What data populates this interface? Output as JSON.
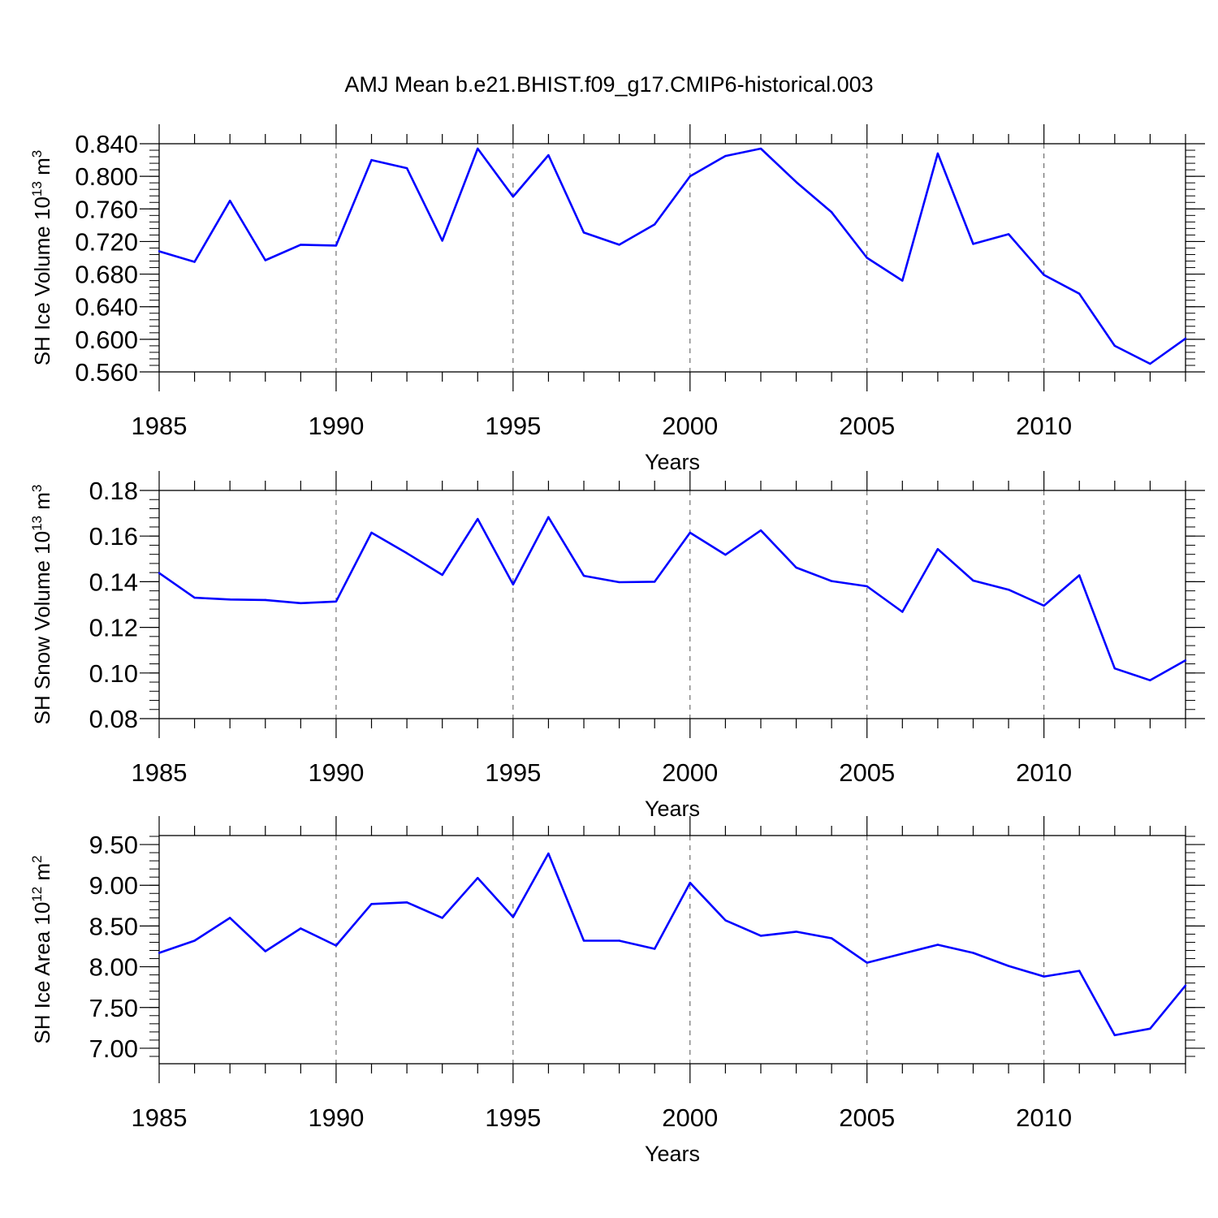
{
  "figure": {
    "title": "AMJ Mean b.e21.BHIST.f09_g17.CMIP6-historical.003"
  },
  "chart_data": [
    {
      "type": "line",
      "ylabel": "SH Ice Volume 10",
      "ylabel_exp": "13",
      "ylabel_unit": "m",
      "ylabel_unit_exp": "3",
      "xlabel": "Years",
      "xlim": [
        1985,
        2014
      ],
      "ylim": [
        0.56,
        0.84
      ],
      "x_ticks": [
        1985,
        1990,
        1995,
        2000,
        2005,
        2010
      ],
      "x_tick_labels": [
        "1985",
        "1990",
        "1995",
        "2000",
        "2005",
        "2010"
      ],
      "y_ticks": [
        0.56,
        0.6,
        0.64,
        0.68,
        0.72,
        0.76,
        0.8,
        0.84
      ],
      "y_tick_labels": [
        "0.560",
        "0.600",
        "0.640",
        "0.680",
        "0.720",
        "0.760",
        "0.800",
        "0.840"
      ],
      "y_minor_step": 0.008,
      "grid": "vertical dashed at major x ticks",
      "color": "#0000ff",
      "x": [
        1985,
        1986,
        1987,
        1988,
        1989,
        1990,
        1991,
        1992,
        1993,
        1994,
        1995,
        1996,
        1997,
        1998,
        1999,
        2000,
        2001,
        2002,
        2003,
        2004,
        2005,
        2006,
        2007,
        2008,
        2009,
        2010,
        2011,
        2012,
        2013,
        2014
      ],
      "values": [
        0.708,
        0.695,
        0.77,
        0.697,
        0.716,
        0.715,
        0.82,
        0.81,
        0.721,
        0.834,
        0.775,
        0.826,
        0.731,
        0.716,
        0.741,
        0.8,
        0.825,
        0.834,
        0.793,
        0.756,
        0.7,
        0.672,
        0.828,
        0.717,
        0.729,
        0.679,
        0.656,
        0.592,
        0.57,
        0.601
      ]
    },
    {
      "type": "line",
      "ylabel": "SH Snow Volume 10",
      "ylabel_exp": "13",
      "ylabel_unit": "m",
      "ylabel_unit_exp": "3",
      "xlabel": "Years",
      "xlim": [
        1985,
        2014
      ],
      "ylim": [
        0.08,
        0.18
      ],
      "x_ticks": [
        1985,
        1990,
        1995,
        2000,
        2005,
        2010
      ],
      "x_tick_labels": [
        "1985",
        "1990",
        "1995",
        "2000",
        "2005",
        "2010"
      ],
      "y_ticks": [
        0.08,
        0.1,
        0.12,
        0.14,
        0.16,
        0.18
      ],
      "y_tick_labels": [
        "0.08",
        "0.10",
        "0.12",
        "0.14",
        "0.16",
        "0.18"
      ],
      "y_minor_step": 0.004,
      "grid": "vertical dashed at major x ticks",
      "color": "#0000ff",
      "x": [
        1985,
        1986,
        1987,
        1988,
        1989,
        1990,
        1991,
        1992,
        1993,
        1994,
        1995,
        1996,
        1997,
        1998,
        1999,
        2000,
        2001,
        2002,
        2003,
        2004,
        2005,
        2006,
        2007,
        2008,
        2009,
        2010,
        2011,
        2012,
        2013,
        2014
      ],
      "values": [
        0.1438,
        0.133,
        0.1322,
        0.132,
        0.1306,
        0.1313,
        0.1615,
        0.1525,
        0.143,
        0.1675,
        0.1388,
        0.1683,
        0.1426,
        0.1398,
        0.14,
        0.1615,
        0.1518,
        0.1625,
        0.1462,
        0.1403,
        0.138,
        0.1268,
        0.1543,
        0.1405,
        0.1365,
        0.1295,
        0.1428,
        0.102,
        0.0968,
        0.1055
      ]
    },
    {
      "type": "line",
      "ylabel": "SH Ice Area 10",
      "ylabel_exp": "12",
      "ylabel_unit": "m",
      "ylabel_unit_exp": "2",
      "xlabel": "Years",
      "xlim": [
        1985,
        2014
      ],
      "ylim": [
        6.81,
        9.61
      ],
      "x_ticks": [
        1985,
        1990,
        1995,
        2000,
        2005,
        2010
      ],
      "x_tick_labels": [
        "1985",
        "1990",
        "1995",
        "2000",
        "2005",
        "2010"
      ],
      "y_ticks": [
        7.0,
        7.5,
        8.0,
        8.5,
        9.0,
        9.5
      ],
      "y_tick_labels": [
        "7.00",
        "7.50",
        "8.00",
        "8.50",
        "9.00",
        "9.50"
      ],
      "y_minor_step": 0.1,
      "grid": "vertical dashed at major x ticks",
      "color": "#0000ff",
      "x": [
        1985,
        1986,
        1987,
        1988,
        1989,
        1990,
        1991,
        1992,
        1993,
        1994,
        1995,
        1996,
        1997,
        1998,
        1999,
        2000,
        2001,
        2002,
        2003,
        2004,
        2005,
        2006,
        2007,
        2008,
        2009,
        2010,
        2011,
        2012,
        2013,
        2014
      ],
      "values": [
        8.17,
        8.32,
        8.6,
        8.19,
        8.47,
        8.26,
        8.77,
        8.79,
        8.6,
        9.09,
        8.61,
        9.39,
        8.32,
        8.32,
        8.22,
        9.03,
        8.57,
        8.38,
        8.43,
        8.35,
        8.05,
        8.16,
        8.27,
        8.17,
        8.01,
        7.88,
        7.95,
        7.16,
        7.24,
        7.77
      ]
    }
  ]
}
